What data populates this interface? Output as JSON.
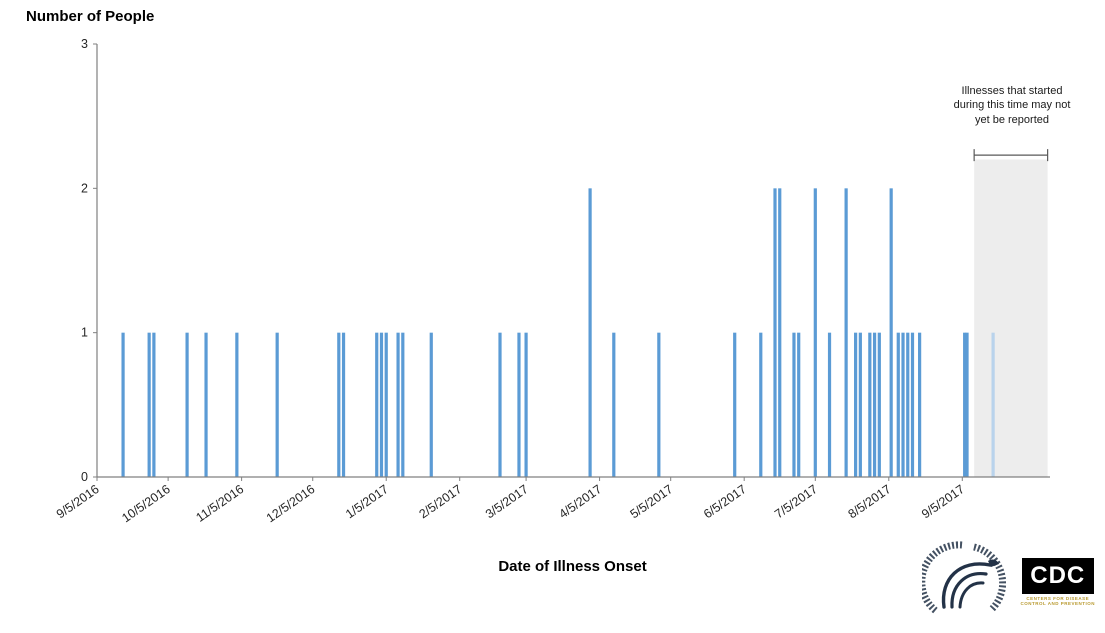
{
  "chart_data": {
    "type": "bar",
    "title": "Number of People",
    "xlabel": "Date of Illness Onset",
    "ylabel": "Number of People",
    "ylim": [
      0,
      3
    ],
    "yticks": [
      0,
      1,
      2,
      3
    ],
    "grid": false,
    "legend_position": "none",
    "x_start": "9/5/2016",
    "x_end": "10/12/2017",
    "x_tick_labels": [
      "9/5/2016",
      "10/5/2016",
      "11/5/2016",
      "12/5/2016",
      "1/5/2017",
      "2/5/2017",
      "3/5/2017",
      "4/5/2017",
      "5/5/2017",
      "6/5/2017",
      "7/5/2017",
      "8/5/2017",
      "9/5/2017"
    ],
    "points": [
      {
        "date": "9/16/2016",
        "count": 1
      },
      {
        "date": "9/27/2016",
        "count": 1
      },
      {
        "date": "9/29/2016",
        "count": 1
      },
      {
        "date": "10/13/2016",
        "count": 1
      },
      {
        "date": "10/21/2016",
        "count": 1
      },
      {
        "date": "11/3/2016",
        "count": 1
      },
      {
        "date": "11/20/2016",
        "count": 1
      },
      {
        "date": "12/16/2016",
        "count": 1
      },
      {
        "date": "12/18/2016",
        "count": 1
      },
      {
        "date": "1/1/2017",
        "count": 1
      },
      {
        "date": "1/3/2017",
        "count": 1
      },
      {
        "date": "1/5/2017",
        "count": 1
      },
      {
        "date": "1/10/2017",
        "count": 1
      },
      {
        "date": "1/12/2017",
        "count": 1
      },
      {
        "date": "1/24/2017",
        "count": 1
      },
      {
        "date": "2/22/2017",
        "count": 1
      },
      {
        "date": "3/2/2017",
        "count": 1
      },
      {
        "date": "3/5/2017",
        "count": 1
      },
      {
        "date": "4/1/2017",
        "count": 2
      },
      {
        "date": "4/11/2017",
        "count": 1
      },
      {
        "date": "4/30/2017",
        "count": 1
      },
      {
        "date": "6/1/2017",
        "count": 1
      },
      {
        "date": "6/12/2017",
        "count": 1
      },
      {
        "date": "6/18/2017",
        "count": 2
      },
      {
        "date": "6/20/2017",
        "count": 2
      },
      {
        "date": "6/26/2017",
        "count": 1
      },
      {
        "date": "6/28/2017",
        "count": 1
      },
      {
        "date": "7/5/2017",
        "count": 2
      },
      {
        "date": "7/11/2017",
        "count": 1
      },
      {
        "date": "7/18/2017",
        "count": 2
      },
      {
        "date": "7/22/2017",
        "count": 1
      },
      {
        "date": "7/24/2017",
        "count": 1
      },
      {
        "date": "7/28/2017",
        "count": 1
      },
      {
        "date": "7/30/2017",
        "count": 1
      },
      {
        "date": "8/1/2017",
        "count": 1
      },
      {
        "date": "8/6/2017",
        "count": 2
      },
      {
        "date": "8/9/2017",
        "count": 1
      },
      {
        "date": "8/11/2017",
        "count": 1
      },
      {
        "date": "8/13/2017",
        "count": 1
      },
      {
        "date": "8/15/2017",
        "count": 1
      },
      {
        "date": "8/18/2017",
        "count": 1
      },
      {
        "date": "9/6/2017",
        "count": 1
      },
      {
        "date": "9/7/2017",
        "count": 1
      },
      {
        "date": "9/18/2017",
        "count": 1,
        "light": true
      }
    ],
    "unreported_region": {
      "start": "9/10/2017",
      "end": "10/11/2017",
      "bracket_value": 2.23,
      "shade_top_value": 2.2,
      "label": "Illnesses that started during this time may not yet  be reported"
    }
  },
  "colors": {
    "bar": "#5b9bd5",
    "bar_light": "#b9d3ec",
    "shade": "#ededed",
    "axis": "#808080",
    "tick_text": "#262626",
    "bracket": "#595959"
  },
  "logos": {
    "cdc_label": "CDC",
    "cdc_sublabel_1": "CENTERS FOR DISEASE",
    "cdc_sublabel_2": "CONTROL AND PREVENTION"
  }
}
